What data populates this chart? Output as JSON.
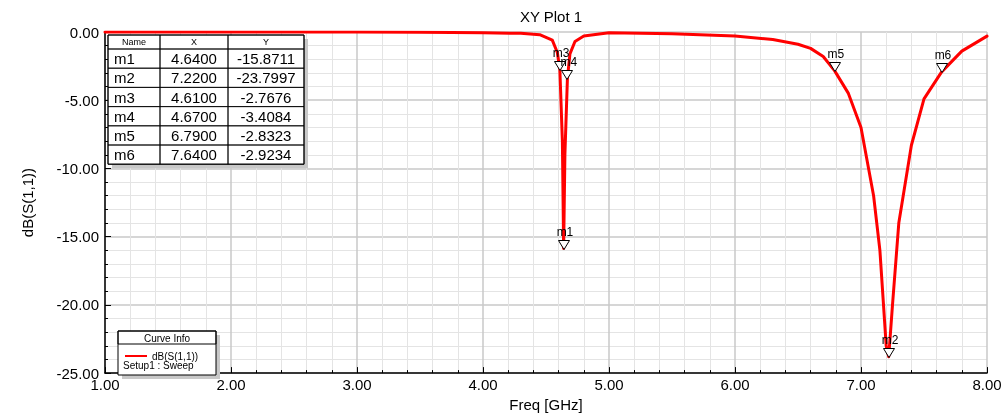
{
  "chart_data": {
    "type": "line",
    "title": "XY Plot 1",
    "xlabel": "Freq [GHz]",
    "ylabel": "dB(S(1,1))",
    "legend_title": "Curve Info",
    "x": [
      1,
      2,
      3,
      3.5,
      4,
      4.3,
      4.45,
      4.55,
      4.59,
      4.61,
      4.63,
      4.64,
      4.65,
      4.67,
      4.69,
      4.73,
      4.8,
      5,
      5.5,
      6,
      6.3,
      6.5,
      6.6,
      6.7,
      6.79,
      6.9,
      7.0,
      7.1,
      7.15,
      7.2,
      7.22,
      7.25,
      7.3,
      7.4,
      7.5,
      7.64,
      7.8,
      8
    ],
    "series": [
      {
        "name": "dB(S(1,1))",
        "color": "#ff0000",
        "values": [
          0,
          0,
          0,
          -0.02,
          -0.05,
          -0.1,
          -0.2,
          -0.6,
          -1.5,
          -2.7676,
          -8,
          -15.8711,
          -9,
          -3.4084,
          -1.6,
          -0.7,
          -0.3,
          -0.05,
          -0.12,
          -0.3,
          -0.55,
          -0.9,
          -1.2,
          -1.8,
          -2.8323,
          -4.5,
          -7,
          -12,
          -16,
          -23,
          -23.7997,
          -20,
          -14,
          -8.3,
          -4.9,
          -2.9234,
          -1.4,
          -0.3
        ]
      }
    ],
    "xlim": [
      1,
      8
    ],
    "xticks": [
      {
        "value": 1,
        "label": "1.00"
      },
      {
        "value": 2,
        "label": "2.00"
      },
      {
        "value": 3,
        "label": "3.00"
      },
      {
        "value": 4,
        "label": "4.00"
      },
      {
        "value": 5,
        "label": "5.00"
      },
      {
        "value": 6,
        "label": "6.00"
      },
      {
        "value": 7,
        "label": "7.00"
      },
      {
        "value": 8,
        "label": "8.00"
      }
    ],
    "ylim": [
      -25,
      0
    ],
    "yticks": [
      {
        "value": -25,
        "label": "-25.00"
      },
      {
        "value": -20,
        "label": "-20.00"
      },
      {
        "value": -15,
        "label": "-15.00"
      },
      {
        "value": -10,
        "label": "-10.00"
      },
      {
        "value": -5,
        "label": "-5.00"
      },
      {
        "value": 0,
        "label": "0.00"
      }
    ],
    "grid": true,
    "legend": "bottom left",
    "marker": "none",
    "line_style": "solid",
    "annotations": [
      {
        "text": "m1",
        "x": 4.64,
        "y": -15.8711
      },
      {
        "text": "m2",
        "x": 7.22,
        "y": -23.7997
      },
      {
        "text": "m3",
        "x": 4.61,
        "y": -2.7676
      },
      {
        "text": "m4",
        "x": 4.67,
        "y": -3.4084
      },
      {
        "text": "m5",
        "x": 6.79,
        "y": -2.8323
      },
      {
        "text": "m6",
        "x": 7.64,
        "y": -2.9234
      },
      "Setup1 : Sweep",
      "Name",
      "X",
      "Y",
      "m1",
      "4.6400",
      "-15.8711",
      "m2",
      "7.2200",
      "-23.7997",
      "m3",
      "4.6100",
      "-2.7676",
      "m4",
      "4.6700",
      "-3.4084",
      "m5",
      "6.7900",
      "-2.8323",
      "m6",
      "7.6400",
      "-2.9234"
    ]
  }
}
